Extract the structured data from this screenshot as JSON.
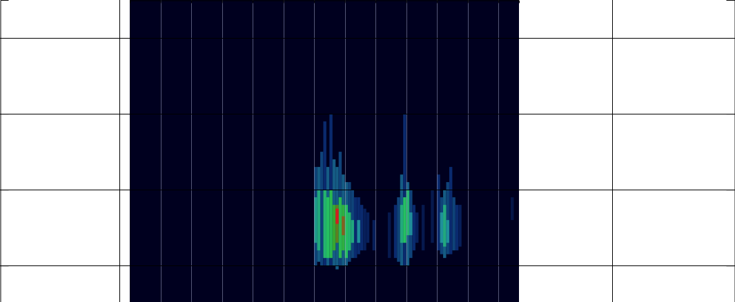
{
  "chart_data": {
    "type": "heatmap",
    "tick_labels": false,
    "grid": true,
    "xlim": [
      0,
      12.67
    ],
    "xticks": [
      1,
      2,
      3,
      4,
      5,
      6,
      7,
      8,
      9,
      10,
      11,
      12
    ],
    "ylim": [
      -0.48,
      3.5
    ],
    "yticks": [
      0,
      1,
      2,
      3
    ],
    "zlim": [
      0,
      1
    ],
    "cell_width": 0.1,
    "cells": [
      {
        "x": 6.0,
        "y0": 0.0,
        "y1": 1.3,
        "value": 0.25
      },
      {
        "x": 6.1,
        "y0": 0.05,
        "y1": 1.3,
        "value": 0.3
      },
      {
        "x": 6.2,
        "y0": 0.0,
        "y1": 1.5,
        "value": 0.25
      },
      {
        "x": 6.3,
        "y0": 0.0,
        "y1": 1.9,
        "value": 0.2
      },
      {
        "x": 6.4,
        "y0": 0.0,
        "y1": 1.3,
        "value": 0.3
      },
      {
        "x": 6.5,
        "y0": 0.0,
        "y1": 2.0,
        "value": 0.2
      },
      {
        "x": 6.6,
        "y0": 0.0,
        "y1": 1.4,
        "value": 0.3
      },
      {
        "x": 6.7,
        "y0": -0.05,
        "y1": 1.3,
        "value": 0.3
      },
      {
        "x": 6.8,
        "y0": 0.0,
        "y1": 1.5,
        "value": 0.25
      },
      {
        "x": 6.9,
        "y0": 0.0,
        "y1": 1.2,
        "value": 0.3
      },
      {
        "x": 7.0,
        "y0": 0.0,
        "y1": 1.1,
        "value": 0.3
      },
      {
        "x": 7.1,
        "y0": 0.05,
        "y1": 1.1,
        "value": 0.25
      },
      {
        "x": 7.2,
        "y0": 0.1,
        "y1": 1.0,
        "value": 0.25
      },
      {
        "x": 7.3,
        "y0": 0.1,
        "y1": 0.9,
        "value": 0.2
      },
      {
        "x": 7.4,
        "y0": 0.15,
        "y1": 0.9,
        "value": 0.2
      },
      {
        "x": 7.5,
        "y0": 0.2,
        "y1": 0.8,
        "value": 0.2
      },
      {
        "x": 7.6,
        "y0": 0.2,
        "y1": 0.75,
        "value": 0.15
      },
      {
        "x": 7.7,
        "y0": 0.3,
        "y1": 0.7,
        "value": 0.15
      },
      {
        "x": 6.0,
        "y0": 0.3,
        "y1": 0.9,
        "value": 0.45
      },
      {
        "x": 6.1,
        "y0": 0.2,
        "y1": 1.0,
        "value": 0.5
      },
      {
        "x": 6.3,
        "y0": 0.1,
        "y1": 1.0,
        "value": 0.55
      },
      {
        "x": 6.4,
        "y0": 0.1,
        "y1": 0.9,
        "value": 0.6
      },
      {
        "x": 6.5,
        "y0": 0.1,
        "y1": 1.0,
        "value": 0.65
      },
      {
        "x": 6.6,
        "y0": 0.2,
        "y1": 0.8,
        "value": 0.75
      },
      {
        "x": 6.7,
        "y0": 0.3,
        "y1": 0.8,
        "value": 0.85
      },
      {
        "x": 6.8,
        "y0": 0.1,
        "y1": 0.9,
        "value": 0.65
      },
      {
        "x": 6.9,
        "y0": 0.2,
        "y1": 0.8,
        "value": 0.7
      },
      {
        "x": 7.0,
        "y0": 0.1,
        "y1": 0.8,
        "value": 0.6
      },
      {
        "x": 7.1,
        "y0": 0.2,
        "y1": 0.7,
        "value": 0.55
      },
      {
        "x": 7.2,
        "y0": 0.3,
        "y1": 0.6,
        "value": 0.5
      },
      {
        "x": 7.4,
        "y0": 0.3,
        "y1": 0.6,
        "value": 0.4
      },
      {
        "x": 6.7,
        "y0": 0.55,
        "y1": 0.75,
        "value": 1.0
      },
      {
        "x": 6.9,
        "y0": 0.4,
        "y1": 0.65,
        "value": 0.9
      },
      {
        "x": 8.6,
        "y0": 0.1,
        "y1": 0.8,
        "value": 0.2
      },
      {
        "x": 8.7,
        "y0": 0.05,
        "y1": 0.9,
        "value": 0.25
      },
      {
        "x": 8.8,
        "y0": 0.0,
        "y1": 1.2,
        "value": 0.3
      },
      {
        "x": 8.9,
        "y0": 0.0,
        "y1": 2.0,
        "value": 0.2
      },
      {
        "x": 9.0,
        "y0": 0.0,
        "y1": 1.1,
        "value": 0.3
      },
      {
        "x": 9.1,
        "y0": 0.1,
        "y1": 1.0,
        "value": 0.25
      },
      {
        "x": 9.2,
        "y0": 0.2,
        "y1": 0.8,
        "value": 0.2
      },
      {
        "x": 9.3,
        "y0": 0.3,
        "y1": 0.7,
        "value": 0.15
      },
      {
        "x": 8.8,
        "y0": 0.3,
        "y1": 0.8,
        "value": 0.5
      },
      {
        "x": 8.9,
        "y0": 0.3,
        "y1": 0.9,
        "value": 0.6
      },
      {
        "x": 9.0,
        "y0": 0.4,
        "y1": 1.0,
        "value": 0.55
      },
      {
        "x": 9.1,
        "y0": 0.4,
        "y1": 0.7,
        "value": 0.4
      },
      {
        "x": 10.0,
        "y0": 0.2,
        "y1": 1.2,
        "value": 0.2
      },
      {
        "x": 10.1,
        "y0": 0.15,
        "y1": 0.9,
        "value": 0.25
      },
      {
        "x": 10.2,
        "y0": 0.1,
        "y1": 1.0,
        "value": 0.3
      },
      {
        "x": 10.3,
        "y0": 0.15,
        "y1": 1.1,
        "value": 0.25
      },
      {
        "x": 10.4,
        "y0": 0.15,
        "y1": 1.3,
        "value": 0.2
      },
      {
        "x": 10.5,
        "y0": 0.2,
        "y1": 0.9,
        "value": 0.25
      },
      {
        "x": 10.6,
        "y0": 0.2,
        "y1": 0.8,
        "value": 0.2
      },
      {
        "x": 10.7,
        "y0": 0.25,
        "y1": 0.8,
        "value": 0.15
      },
      {
        "x": 10.1,
        "y0": 0.3,
        "y1": 0.7,
        "value": 0.4
      },
      {
        "x": 10.2,
        "y0": 0.25,
        "y1": 0.8,
        "value": 0.5
      },
      {
        "x": 10.3,
        "y0": 0.3,
        "y1": 0.6,
        "value": 0.4
      },
      {
        "x": 7.9,
        "y0": 0.2,
        "y1": 0.6,
        "value": 0.15
      },
      {
        "x": 8.4,
        "y0": 0.1,
        "y1": 0.7,
        "value": 0.12
      },
      {
        "x": 9.5,
        "y0": 0.2,
        "y1": 0.8,
        "value": 0.12
      },
      {
        "x": 9.8,
        "y0": 0.3,
        "y1": 1.0,
        "value": 0.12
      },
      {
        "x": 12.4,
        "y0": 0.6,
        "y1": 0.9,
        "value": 0.1
      }
    ]
  }
}
